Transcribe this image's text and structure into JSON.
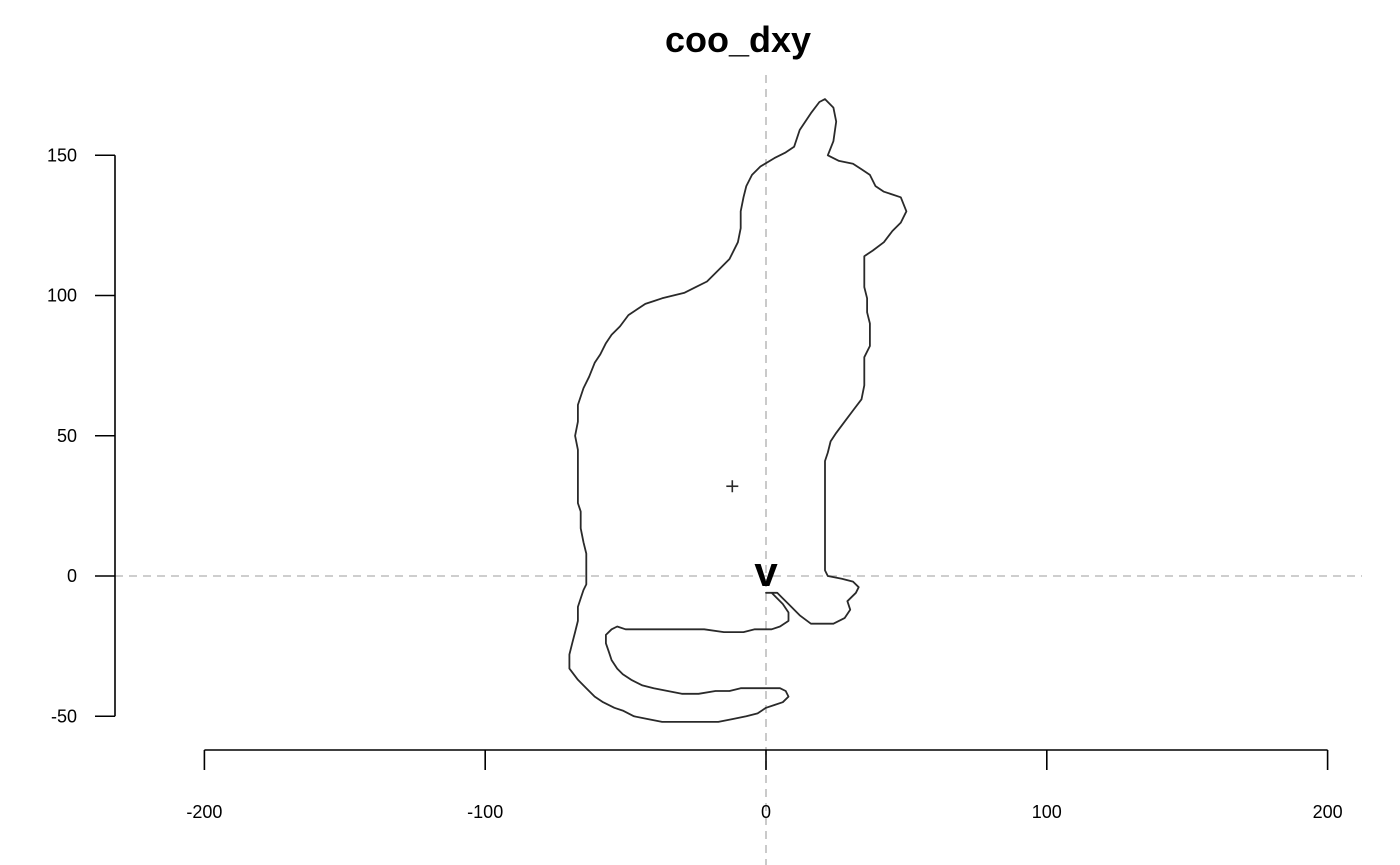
{
  "chart_data": {
    "type": "line",
    "title": "coo_dxy",
    "xlabel": "",
    "ylabel": "",
    "xlim": [
      -200,
      200
    ],
    "ylim": [
      -50,
      150
    ],
    "x_ticks": [
      -200,
      -100,
      0,
      100,
      200
    ],
    "y_ticks": [
      -50,
      0,
      50,
      100,
      150
    ],
    "grid": false,
    "reference_lines": {
      "x": 0,
      "y": 0,
      "style": "dashed",
      "color": "#bdbdbd"
    },
    "outline_color": "#2a2a2a",
    "start_marker": {
      "label": "v",
      "x": 0,
      "y": 0
    },
    "centroid": {
      "x": -12,
      "y": 32
    },
    "series": [
      {
        "closed": true,
        "points": [
          [
            0,
            -6
          ],
          [
            0,
            -6
          ],
          [
            4,
            -6
          ],
          [
            6,
            -8
          ],
          [
            8,
            -10
          ],
          [
            12,
            -14
          ],
          [
            16,
            -17
          ],
          [
            24,
            -17
          ],
          [
            28,
            -15
          ],
          [
            30,
            -12
          ],
          [
            29,
            -9
          ],
          [
            32,
            -6
          ],
          [
            33,
            -4
          ],
          [
            31,
            -2
          ],
          [
            27,
            -1
          ],
          [
            22,
            0
          ],
          [
            21,
            2
          ],
          [
            21,
            8
          ],
          [
            21,
            20
          ],
          [
            21,
            30
          ],
          [
            21,
            41
          ],
          [
            22,
            44
          ],
          [
            23,
            48
          ],
          [
            25,
            51
          ],
          [
            28,
            55
          ],
          [
            31,
            59
          ],
          [
            34,
            63
          ],
          [
            35,
            68
          ],
          [
            35,
            73
          ],
          [
            35,
            78
          ],
          [
            37,
            82
          ],
          [
            37,
            86
          ],
          [
            37,
            90
          ],
          [
            36,
            94
          ],
          [
            36,
            99
          ],
          [
            35,
            103
          ],
          [
            35,
            107
          ],
          [
            35,
            114
          ],
          [
            38,
            116
          ],
          [
            42,
            119
          ],
          [
            45,
            123
          ],
          [
            48,
            126
          ],
          [
            50,
            130
          ],
          [
            48,
            135
          ],
          [
            45,
            136
          ],
          [
            42,
            137
          ],
          [
            39,
            139
          ],
          [
            37,
            143
          ],
          [
            34,
            145
          ],
          [
            31,
            147
          ],
          [
            26,
            148
          ],
          [
            22,
            150
          ],
          [
            24,
            155
          ],
          [
            25,
            162
          ],
          [
            24,
            167
          ],
          [
            21,
            170
          ],
          [
            19,
            169
          ],
          [
            16,
            165
          ],
          [
            12,
            159
          ],
          [
            10,
            153
          ],
          [
            7,
            151
          ],
          [
            3,
            149
          ],
          [
            -2,
            146
          ],
          [
            -5,
            143
          ],
          [
            -7,
            139
          ],
          [
            -8,
            135
          ],
          [
            -9,
            130
          ],
          [
            -9,
            124
          ],
          [
            -10,
            119
          ],
          [
            -13,
            113
          ],
          [
            -17,
            109
          ],
          [
            -21,
            105
          ],
          [
            -25,
            103
          ],
          [
            -29,
            101
          ],
          [
            -33,
            100
          ],
          [
            -37,
            99
          ],
          [
            -40,
            98
          ],
          [
            -43,
            97
          ],
          [
            -46,
            95
          ],
          [
            -49,
            93
          ],
          [
            -52,
            89
          ],
          [
            -55,
            86
          ],
          [
            -57,
            83
          ],
          [
            -59,
            79
          ],
          [
            -61,
            76
          ],
          [
            -63,
            71
          ],
          [
            -65,
            67
          ],
          [
            -67,
            61
          ],
          [
            -67,
            55
          ],
          [
            -68,
            50
          ],
          [
            -67,
            45
          ],
          [
            -67,
            38
          ],
          [
            -67,
            31
          ],
          [
            -67,
            26
          ],
          [
            -66,
            23
          ],
          [
            -66,
            17
          ],
          [
            -65,
            12
          ],
          [
            -64,
            8
          ],
          [
            -64,
            4
          ],
          [
            -64,
            0
          ],
          [
            -64,
            -3
          ],
          [
            -65,
            -5
          ],
          [
            -66,
            -8
          ],
          [
            -67,
            -11
          ],
          [
            -67,
            -16
          ],
          [
            -68,
            -20
          ],
          [
            -69,
            -24
          ],
          [
            -70,
            -28
          ],
          [
            -70,
            -33
          ],
          [
            -67,
            -37
          ],
          [
            -64,
            -40
          ],
          [
            -61,
            -43
          ],
          [
            -58,
            -45
          ],
          [
            -54,
            -47
          ],
          [
            -51,
            -48
          ],
          [
            -47,
            -50
          ],
          [
            -42,
            -51
          ],
          [
            -37,
            -52
          ],
          [
            -30,
            -52
          ],
          [
            -23,
            -52
          ],
          [
            -17,
            -52
          ],
          [
            -12,
            -51
          ],
          [
            -7,
            -50
          ],
          [
            -3,
            -49
          ],
          [
            0,
            -47
          ],
          [
            3,
            -46
          ],
          [
            6,
            -45
          ],
          [
            8,
            -43
          ],
          [
            7,
            -41
          ],
          [
            5,
            -40
          ],
          [
            0,
            -40
          ],
          [
            -5,
            -40
          ],
          [
            -9,
            -40
          ],
          [
            -13,
            -41
          ],
          [
            -18,
            -41
          ],
          [
            -24,
            -42
          ],
          [
            -30,
            -42
          ],
          [
            -35,
            -41
          ],
          [
            -40,
            -40
          ],
          [
            -44,
            -39
          ],
          [
            -48,
            -37
          ],
          [
            -51,
            -35
          ],
          [
            -53,
            -33
          ],
          [
            -55,
            -30
          ],
          [
            -56,
            -27
          ],
          [
            -57,
            -24
          ],
          [
            -57,
            -21
          ],
          [
            -55,
            -19
          ],
          [
            -53,
            -18
          ],
          [
            -50,
            -19
          ],
          [
            -45,
            -19
          ],
          [
            -38,
            -19
          ],
          [
            -30,
            -19
          ],
          [
            -22,
            -19
          ],
          [
            -15,
            -20
          ],
          [
            -8,
            -20
          ],
          [
            -4,
            -19
          ],
          [
            2,
            -19
          ],
          [
            5,
            -18
          ],
          [
            8,
            -16
          ],
          [
            8,
            -13
          ],
          [
            6,
            -10
          ],
          [
            4,
            -8
          ],
          [
            2,
            -6
          ]
        ]
      }
    ]
  }
}
